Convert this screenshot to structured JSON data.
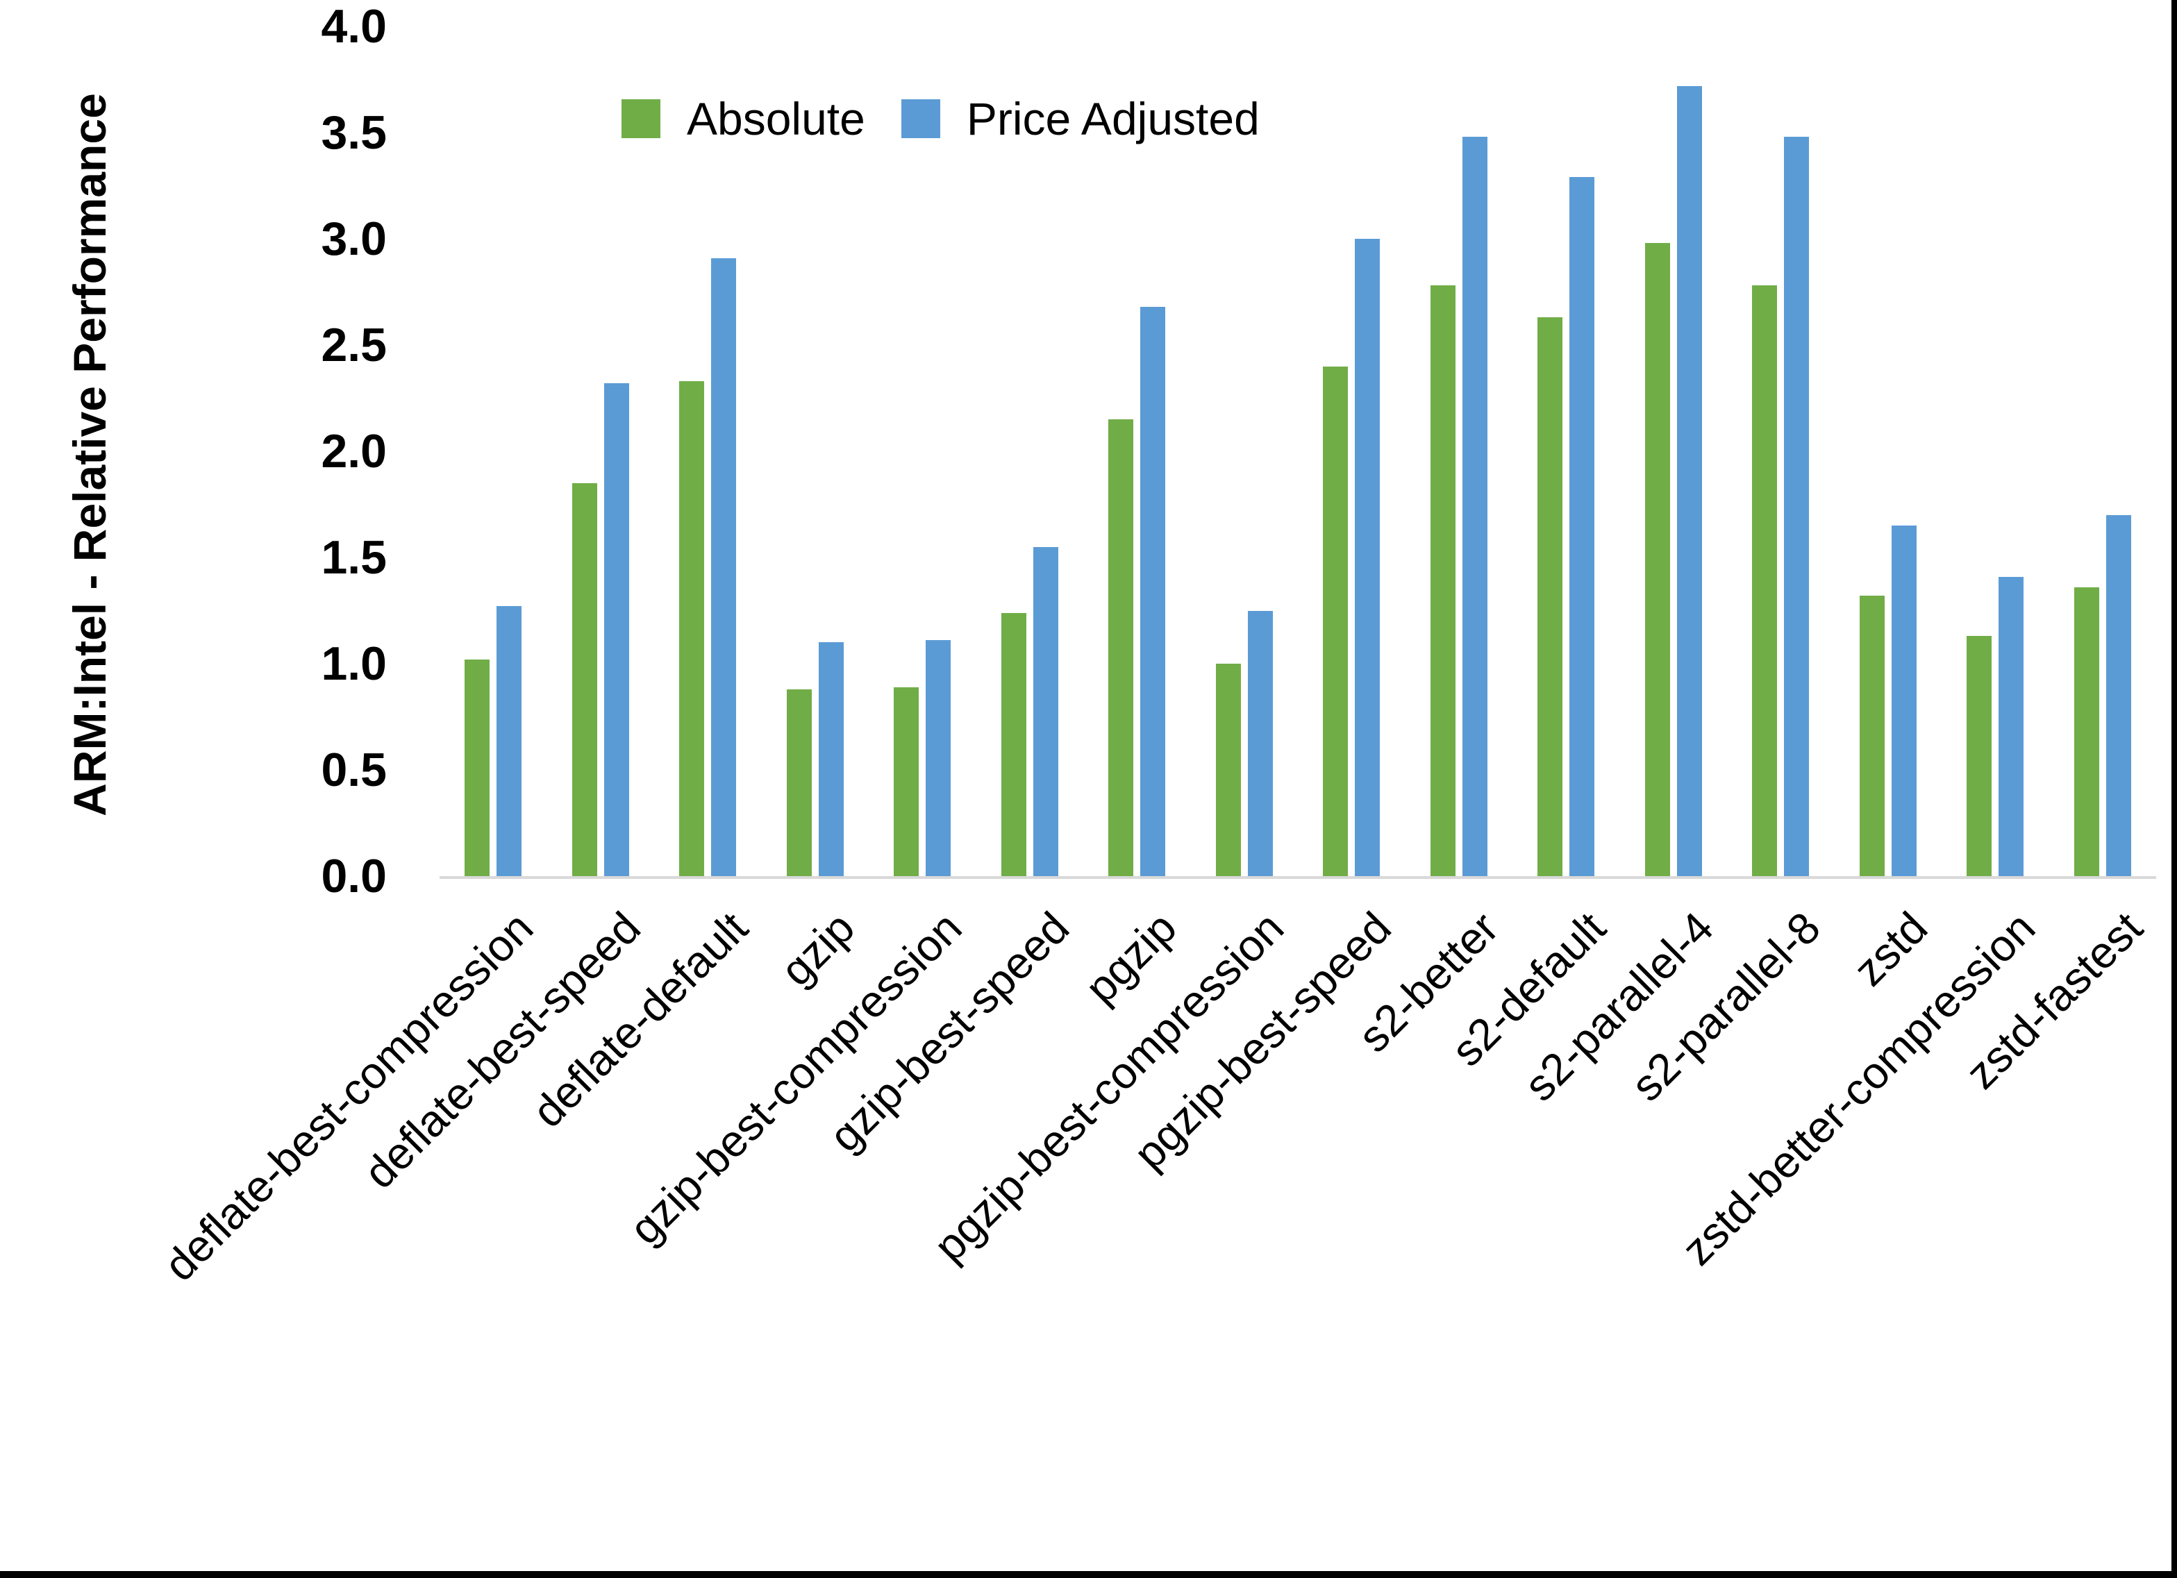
{
  "chart_data": {
    "type": "bar",
    "title": "",
    "xlabel": "",
    "ylabel": "ARM:Intel - Relative Performance",
    "ylim": [
      0.0,
      4.0
    ],
    "ytick_labels": [
      "4.0",
      "3.5",
      "3.0",
      "2.5",
      "2.0",
      "1.5",
      "1.0",
      "0.5",
      "0.0"
    ],
    "grid": false,
    "legend_position": "top-center",
    "categories": [
      "deflate-best-compression",
      "deflate-best-speed",
      "deflate-default",
      "gzip",
      "gzip-best-compression",
      "gzip-best-speed",
      "pgzip",
      "pgzip-best-compression",
      "pgzip-best-speed",
      "s2-better",
      "s2-default",
      "s2-parallel-4",
      "s2-parallel-8",
      "zstd",
      "zstd-better-compression",
      "zstd-fastest"
    ],
    "series": [
      {
        "name": "Absolute",
        "color": "#70AD47",
        "values": [
          1.02,
          1.85,
          2.33,
          0.88,
          0.89,
          1.24,
          2.15,
          1.0,
          2.4,
          2.78,
          2.63,
          2.98,
          2.78,
          1.32,
          1.13,
          1.36
        ]
      },
      {
        "name": "Price Adjusted",
        "color": "#5B9BD5",
        "values": [
          1.27,
          2.32,
          2.91,
          1.1,
          1.11,
          1.55,
          2.68,
          1.25,
          3.0,
          3.48,
          3.29,
          3.72,
          3.48,
          1.65,
          1.41,
          1.7
        ]
      }
    ]
  },
  "colors": {
    "background": "#FFFFFF",
    "axis_line": "#D9D9D9",
    "text": "#000000",
    "frame_border": "#000000"
  }
}
